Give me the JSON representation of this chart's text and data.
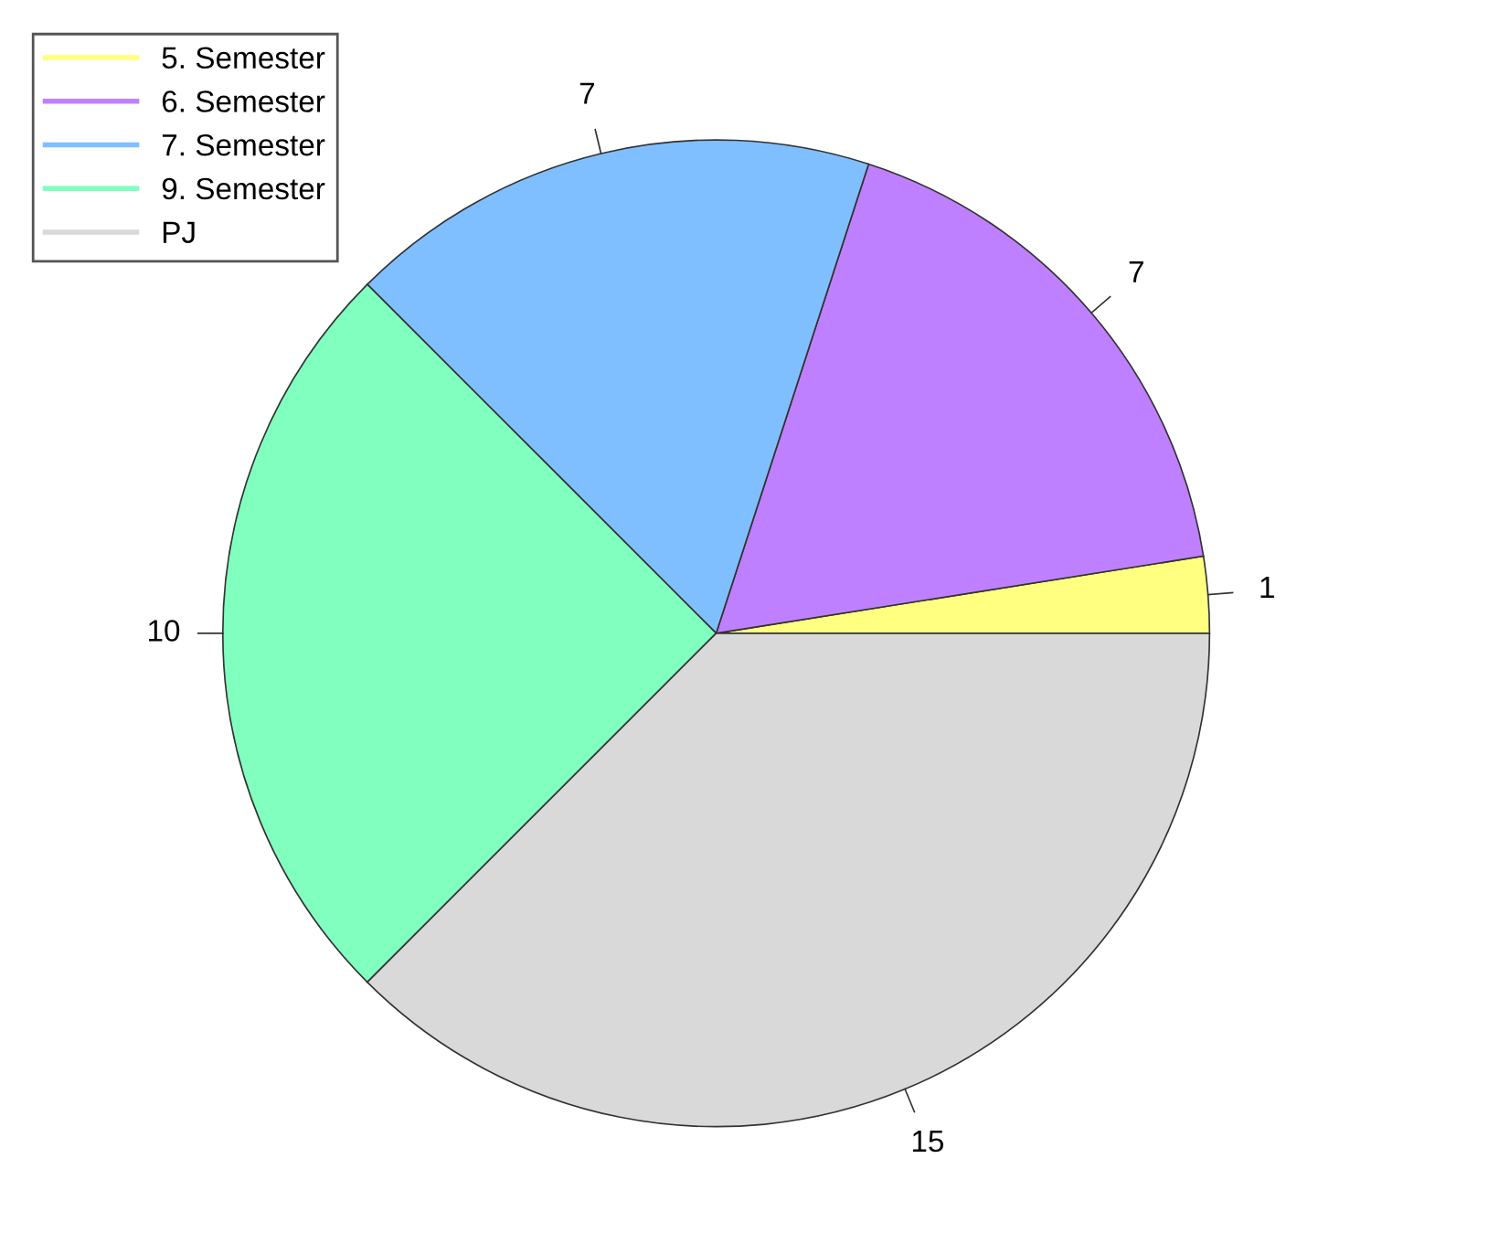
{
  "chart_data": {
    "type": "pie",
    "categories": [
      "5. Semester",
      "6. Semester",
      "7. Semester",
      "9. Semester",
      "PJ"
    ],
    "values": [
      1,
      7,
      7,
      10,
      15
    ],
    "colors": [
      "#ffff80",
      "#bf80ff",
      "#80bfff",
      "#80ffbf",
      "#d9d9d9"
    ],
    "data_labels": true,
    "legend": "top left"
  }
}
